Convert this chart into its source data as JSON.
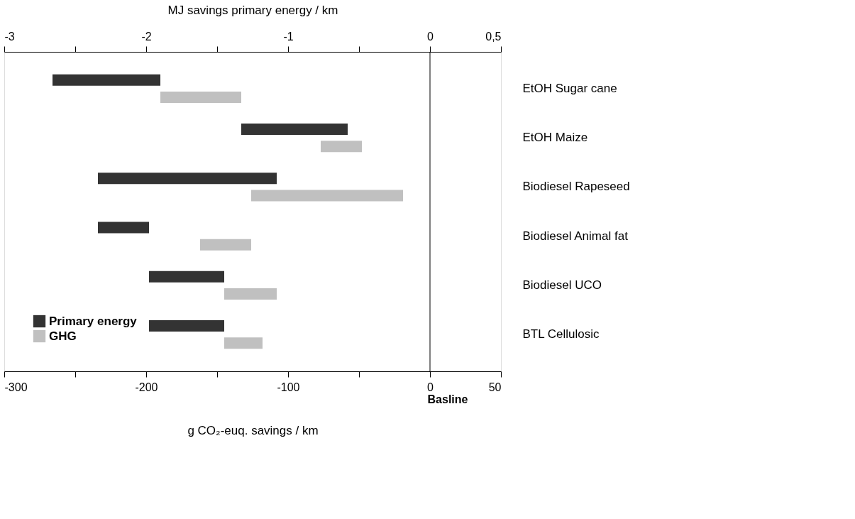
{
  "chart_data": {
    "type": "bar",
    "orientation": "horizontal",
    "categories": [
      "EtOH Sugar cane",
      "EtOH Maize",
      "Biodiesel Rapeseed",
      "Biodiesel Animal fat",
      "Biodiesel UCO",
      "BTL Cellulosic"
    ],
    "series": [
      {
        "name": "Primary energy",
        "color": "#333333",
        "axis": "x2",
        "base": [
          -2.66,
          -1.33,
          -2.34,
          -2.34,
          -1.98,
          -1.98
        ],
        "values": [
          0.76,
          0.75,
          1.26,
          0.36,
          0.53,
          0.53
        ]
      },
      {
        "name": "GHG",
        "color": "#c0c0c0",
        "base": [
          -190,
          -77,
          -126,
          -162,
          -145,
          -145
        ],
        "values": [
          57,
          29,
          107,
          36,
          37,
          27
        ]
      }
    ],
    "xlabel": "g CO₂-euq. savings / km",
    "x2label": "MJ savings primary energy / km",
    "xlim": [
      -300,
      50
    ],
    "xticks": [
      -300,
      {
        "value": -250,
        "label": null
      },
      -200,
      {
        "value": -150,
        "label": null
      },
      -100,
      {
        "value": -50,
        "label": null
      },
      0,
      50
    ],
    "x2lim": [
      -3,
      0.5
    ],
    "x2ticks": [
      -3,
      {
        "value": -2.5,
        "label": null
      },
      -2,
      {
        "value": -1.5,
        "label": null
      },
      -1,
      {
        "value": -0.5,
        "label": null
      },
      0,
      {
        "value": 0.5,
        "label": "0,5"
      }
    ],
    "ref_lines": [
      {
        "axis": "x",
        "value": 0,
        "label": "Basline",
        "color": "#000000"
      }
    ],
    "legend": "bottom left",
    "grid": false
  }
}
